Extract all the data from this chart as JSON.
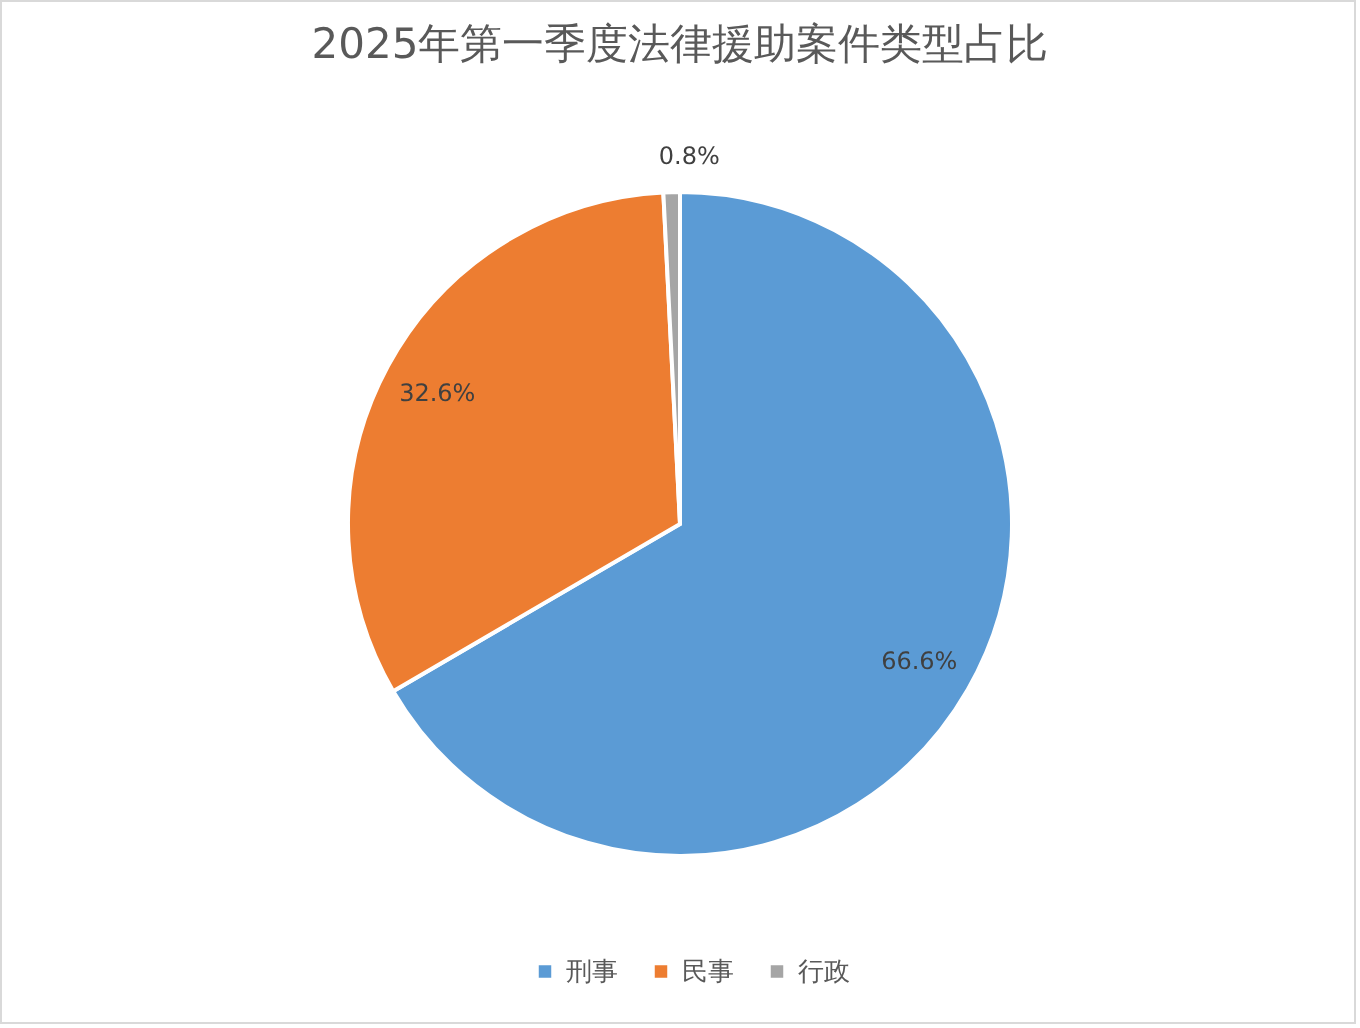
{
  "chart_data": {
    "type": "pie",
    "title": "2025年第一季度法律援助案件类型占比",
    "categories": [
      "刑事",
      "民事",
      "行政"
    ],
    "values": [
      66.6,
      32.6,
      0.8
    ],
    "colors": [
      "#5b9bd5",
      "#ed7d31",
      "#a5a5a5"
    ],
    "value_labels": [
      "66.6%",
      "32.6%",
      "0.8%"
    ],
    "legend": "bottom"
  }
}
